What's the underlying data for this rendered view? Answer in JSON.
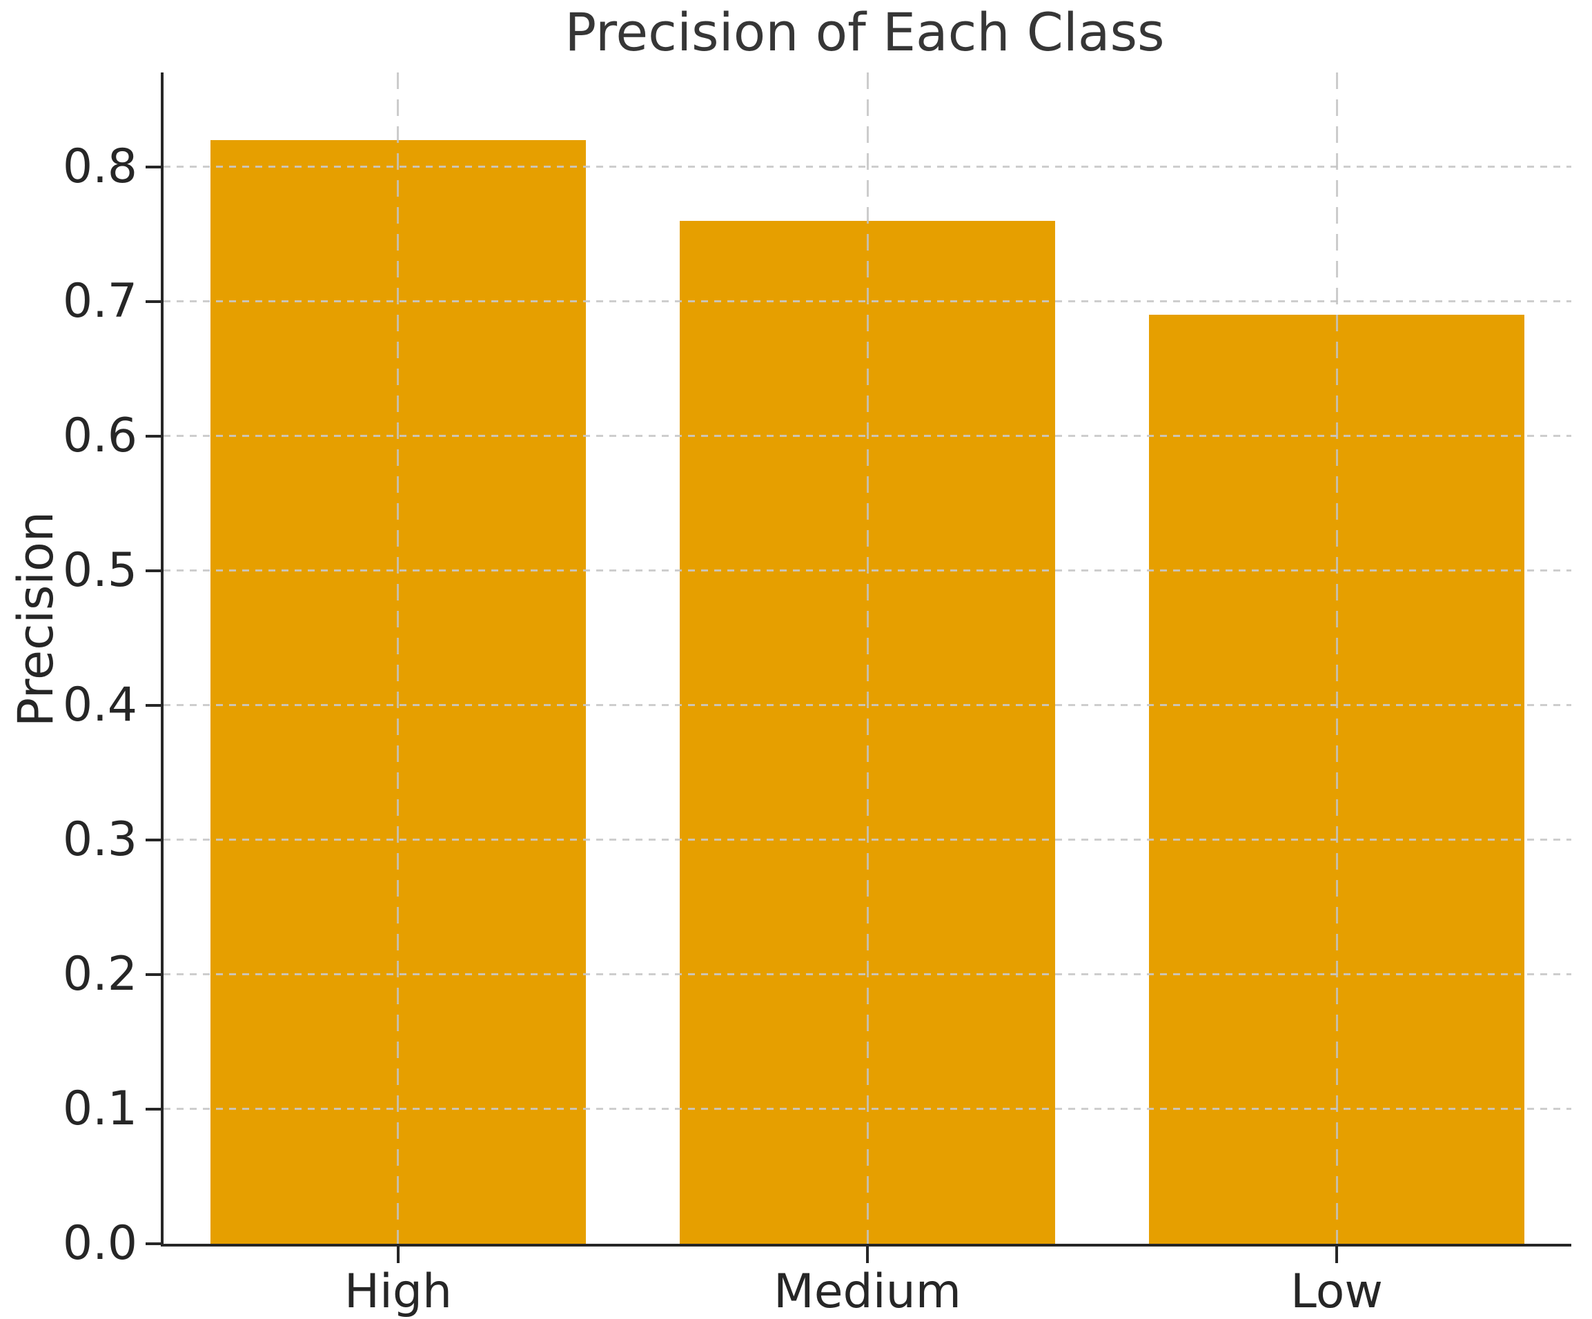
{
  "chart_data": {
    "type": "bar",
    "title": "Precision of Each Class",
    "xlabel": "",
    "ylabel": "Precision",
    "categories": [
      "High",
      "Medium",
      "Low"
    ],
    "values": [
      0.82,
      0.76,
      0.69
    ],
    "ytick_labels": [
      "0.0",
      "0.1",
      "0.2",
      "0.3",
      "0.4",
      "0.5",
      "0.6",
      "0.7",
      "0.8"
    ],
    "yticks": [
      0.0,
      0.1,
      0.2,
      0.3,
      0.4,
      0.5,
      0.6,
      0.7,
      0.8
    ],
    "ylim": [
      0,
      0.87
    ],
    "bar_width_fraction": 0.8,
    "grid": "dashed, light gray, horizontal and vertical at bar centers, drawn above bars",
    "legend": null,
    "colors": {
      "bar": "#E69F00",
      "spine": "#262626",
      "tick_text": "#262626",
      "title_text": "#363636",
      "gridline": "#c8c8c8",
      "background": "#ffffff"
    }
  }
}
